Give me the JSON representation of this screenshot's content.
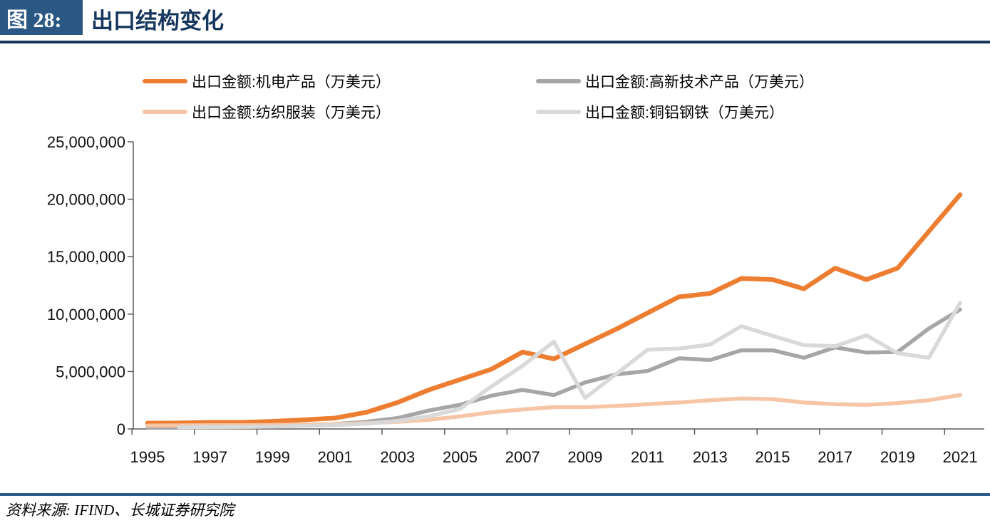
{
  "header": {
    "figure_label": "图 28:",
    "title": "出口结构变化"
  },
  "source": {
    "text": "资料来源: IFIND、长城证券研究院"
  },
  "colors": {
    "header_box": "#2A5784",
    "header_text": "#17365D",
    "header_rule": "#17365D",
    "source_rule": "#2E5C8A",
    "axis": "#595959"
  },
  "chart_data": {
    "type": "line",
    "title": "出口结构变化",
    "unit": "万美元",
    "grid": false,
    "legend_position": "top",
    "x": [
      1995,
      1996,
      1997,
      1998,
      1999,
      2000,
      2001,
      2002,
      2003,
      2004,
      2005,
      2006,
      2007,
      2008,
      2009,
      2010,
      2011,
      2012,
      2013,
      2014,
      2015,
      2016,
      2017,
      2018,
      2019,
      2020,
      2021
    ],
    "x_tick_labels": [
      "1995",
      "1997",
      "1999",
      "2001",
      "2003",
      "2005",
      "2007",
      "2009",
      "2011",
      "2013",
      "2015",
      "2017",
      "2019",
      "2021"
    ],
    "ylim": [
      0,
      25000000
    ],
    "y_ticks": [
      0,
      5000000,
      10000000,
      15000000,
      20000000,
      25000000
    ],
    "y_tick_labels": [
      "0",
      "5,000,000",
      "10,000,000",
      "15,000,000",
      "20,000,000",
      "25,000,000"
    ],
    "series": [
      {
        "name": "出口金额:机电产品（万美元）",
        "color": "#ED7D31",
        "values": [
          500000,
          520000,
          580000,
          580000,
          660000,
          800000,
          950000,
          1450000,
          2300000,
          3400000,
          4300000,
          5200000,
          6700000,
          6100000,
          7400000,
          8700000,
          10100000,
          11500000,
          11800000,
          13100000,
          13000000,
          12200000,
          14000000,
          13000000,
          14000000,
          17200000,
          20400000
        ]
      },
      {
        "name": "出口金额:高新技术产品（万美元）",
        "color": "#A6A6A6",
        "values": [
          100000,
          110000,
          130000,
          160000,
          220000,
          320000,
          430000,
          620000,
          950000,
          1600000,
          2100000,
          2900000,
          3400000,
          2950000,
          4050000,
          4750000,
          5050000,
          6150000,
          6000000,
          6850000,
          6850000,
          6200000,
          7100000,
          6650000,
          6700000,
          8750000,
          10400000
        ]
      },
      {
        "name": "出口金额:纺织服装（万美元）",
        "color": "#F6C5A5",
        "values": [
          300000,
          310000,
          330000,
          330000,
          350000,
          400000,
          430000,
          500000,
          620000,
          800000,
          1100000,
          1450000,
          1700000,
          1900000,
          1900000,
          2000000,
          2150000,
          2300000,
          2500000,
          2650000,
          2600000,
          2300000,
          2150000,
          2100000,
          2250000,
          2500000,
          2950000
        ]
      },
      {
        "name": "出口金额:铜铝钢铁（万美元）",
        "color": "#D9D9D9",
        "values": [
          null,
          150000,
          180000,
          180000,
          200000,
          280000,
          330000,
          460000,
          700000,
          1100000,
          1750000,
          3700000,
          5500000,
          7600000,
          2700000,
          4800000,
          6900000,
          7000000,
          7350000,
          8950000,
          8100000,
          7300000,
          7200000,
          8150000,
          6600000,
          6200000,
          11000000
        ]
      }
    ]
  }
}
